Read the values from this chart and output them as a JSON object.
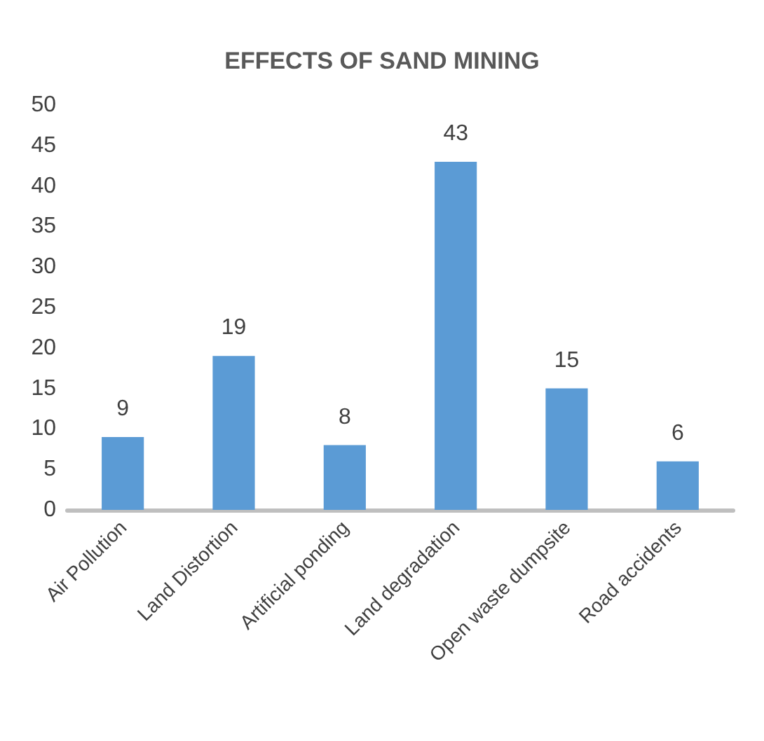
{
  "chart_data": {
    "type": "bar",
    "title": "EFFECTS OF SAND MINING",
    "categories": [
      "Air Pollution",
      "Land Distortion",
      "Artificial ponding",
      "Land degradation",
      "Open waste dumpsite",
      "Road accidents"
    ],
    "values": [
      9,
      19,
      8,
      43,
      15,
      6
    ],
    "color": "#5b9bd5",
    "ylim": [
      0,
      50
    ],
    "yticks": [
      0,
      5,
      10,
      15,
      20,
      25,
      30,
      35,
      40,
      45,
      50
    ],
    "data_labels": true
  }
}
